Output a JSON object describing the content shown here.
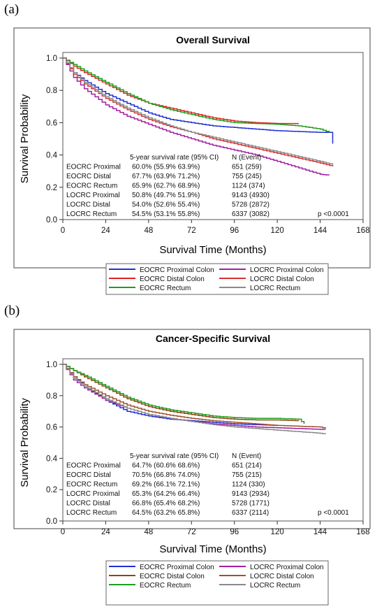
{
  "panels": [
    {
      "label": "(a)",
      "chart_data": {
        "type": "line",
        "title": "Overall Survival",
        "xlabel": "Survival Time (Months)",
        "ylabel": "Survival Probability",
        "xlim": [
          0,
          168
        ],
        "ylim": [
          0,
          1.0
        ],
        "xticks": [
          0,
          24,
          48,
          72,
          96,
          120,
          144,
          168
        ],
        "yticks": [
          0.0,
          0.2,
          0.4,
          0.6,
          0.8,
          1.0
        ],
        "ytick_labels": [
          "0.0",
          "0.2",
          "0.4",
          "0.6",
          "0.8",
          "1.0"
        ],
        "series": [
          {
            "name": "EOCRC Proximal Colon",
            "color": "#1f2fd6",
            "points": [
              [
                0,
                1.0
              ],
              [
                6,
                0.91
              ],
              [
                12,
                0.86
              ],
              [
                24,
                0.78
              ],
              [
                36,
                0.72
              ],
              [
                48,
                0.66
              ],
              [
                60,
                0.62
              ],
              [
                72,
                0.6
              ],
              [
                84,
                0.58
              ],
              [
                96,
                0.57
              ],
              [
                108,
                0.56
              ],
              [
                120,
                0.55
              ],
              [
                132,
                0.545
              ],
              [
                144,
                0.54
              ],
              [
                151,
                0.54
              ],
              [
                151,
                0.47
              ]
            ]
          },
          {
            "name": "EOCRC Distal Colon",
            "color": "#e02020",
            "points": [
              [
                0,
                1.0
              ],
              [
                6,
                0.95
              ],
              [
                12,
                0.91
              ],
              [
                24,
                0.84
              ],
              [
                36,
                0.77
              ],
              [
                48,
                0.72
              ],
              [
                60,
                0.69
              ],
              [
                72,
                0.66
              ],
              [
                84,
                0.63
              ],
              [
                96,
                0.61
              ],
              [
                108,
                0.6
              ],
              [
                120,
                0.595
              ],
              [
                132,
                0.595
              ]
            ]
          },
          {
            "name": "EOCRC Rectum",
            "color": "#1e9e1e",
            "points": [
              [
                0,
                1.0
              ],
              [
                6,
                0.96
              ],
              [
                12,
                0.92
              ],
              [
                24,
                0.85
              ],
              [
                36,
                0.78
              ],
              [
                48,
                0.72
              ],
              [
                60,
                0.68
              ],
              [
                72,
                0.65
              ],
              [
                84,
                0.62
              ],
              [
                96,
                0.6
              ],
              [
                108,
                0.595
              ],
              [
                120,
                0.59
              ],
              [
                132,
                0.58
              ],
              [
                144,
                0.56
              ],
              [
                149,
                0.54
              ]
            ]
          },
          {
            "name": "LOCRC Proximal Colon",
            "color": "#a020a0",
            "points": [
              [
                0,
                1.0
              ],
              [
                6,
                0.88
              ],
              [
                12,
                0.81
              ],
              [
                24,
                0.71
              ],
              [
                36,
                0.64
              ],
              [
                48,
                0.59
              ],
              [
                60,
                0.54
              ],
              [
                72,
                0.5
              ],
              [
                84,
                0.46
              ],
              [
                96,
                0.43
              ],
              [
                108,
                0.4
              ],
              [
                120,
                0.36
              ],
              [
                132,
                0.32
              ],
              [
                144,
                0.28
              ],
              [
                149,
                0.275
              ]
            ]
          },
          {
            "name": "LOCRC Distal Colon",
            "color": "#d83030",
            "points": [
              [
                0,
                1.0
              ],
              [
                6,
                0.9
              ],
              [
                12,
                0.84
              ],
              [
                24,
                0.75
              ],
              [
                36,
                0.68
              ],
              [
                48,
                0.62
              ],
              [
                60,
                0.575
              ],
              [
                72,
                0.54
              ],
              [
                84,
                0.5
              ],
              [
                96,
                0.47
              ],
              [
                108,
                0.44
              ],
              [
                120,
                0.41
              ],
              [
                132,
                0.38
              ],
              [
                144,
                0.35
              ],
              [
                151,
                0.33
              ]
            ]
          },
          {
            "name": "LOCRC Rectum",
            "color": "#8a8a8a",
            "points": [
              [
                0,
                1.0
              ],
              [
                6,
                0.91
              ],
              [
                12,
                0.85
              ],
              [
                24,
                0.76
              ],
              [
                36,
                0.69
              ],
              [
                48,
                0.63
              ],
              [
                60,
                0.58
              ],
              [
                72,
                0.54
              ],
              [
                84,
                0.51
              ],
              [
                96,
                0.48
              ],
              [
                108,
                0.45
              ],
              [
                120,
                0.42
              ],
              [
                132,
                0.39
              ],
              [
                144,
                0.36
              ],
              [
                151,
                0.34
              ]
            ]
          }
        ],
        "table": {
          "header_rate": "5-year survival rate (95% CI)",
          "header_n": "N (Event)",
          "rows": [
            {
              "group": "EOCRC Proximal",
              "rate": "60.0% (55.9% 63.9%)",
              "n": "651 (259)"
            },
            {
              "group": "EOCRC Distal",
              "rate": "67.7% (63.9% 71.2%)",
              "n": "755 (245)"
            },
            {
              "group": "EOCRC Rectum",
              "rate": "65.9% (62.7% 68.9%)",
              "n": "1124 (374)"
            },
            {
              "group": "LOCRC Proximal",
              "rate": "50.8% (49.7% 51.9%)",
              "n": "9143 (4930)"
            },
            {
              "group": "LOCRC Distal",
              "rate": "54.0% (52.6% 55.4%)",
              "n": "5728 (2872)"
            },
            {
              "group": "LOCRC Rectum",
              "rate": "54.5% (53.1% 55.8%)",
              "n": "6337 (3082)"
            }
          ],
          "p_value": "p <0.0001"
        }
      }
    },
    {
      "label": "(b)",
      "chart_data": {
        "type": "line",
        "title": "Cancer-Specific Survival",
        "xlabel": "Survival Time (Months)",
        "ylabel": "Survival Probability",
        "xlim": [
          0,
          168
        ],
        "ylim": [
          0,
          1.0
        ],
        "xticks": [
          0,
          24,
          48,
          72,
          96,
          120,
          144,
          168
        ],
        "yticks": [
          0.0,
          0.2,
          0.4,
          0.6,
          0.8,
          1.0
        ],
        "ytick_labels": [
          "0.0",
          "0.2",
          "0.4",
          "0.6",
          "0.8",
          "1.0"
        ],
        "series": [
          {
            "name": "EOCRC Proximal Colon",
            "color": "#1f2fd6",
            "points": [
              [
                0,
                1.0
              ],
              [
                6,
                0.92
              ],
              [
                12,
                0.86
              ],
              [
                24,
                0.77
              ],
              [
                36,
                0.7
              ],
              [
                48,
                0.67
              ],
              [
                60,
                0.65
              ],
              [
                72,
                0.64
              ],
              [
                84,
                0.63
              ],
              [
                96,
                0.62
              ],
              [
                108,
                0.615
              ],
              [
                120,
                0.61
              ]
            ]
          },
          {
            "name": "EOCRC Distal Colon",
            "color": "#8b4513",
            "points": [
              [
                0,
                1.0
              ],
              [
                6,
                0.96
              ],
              [
                12,
                0.92
              ],
              [
                24,
                0.85
              ],
              [
                36,
                0.78
              ],
              [
                48,
                0.73
              ],
              [
                60,
                0.7
              ],
              [
                72,
                0.68
              ],
              [
                84,
                0.66
              ],
              [
                96,
                0.65
              ],
              [
                108,
                0.645
              ],
              [
                120,
                0.645
              ],
              [
                132,
                0.64
              ]
            ]
          },
          {
            "name": "EOCRC Rectum",
            "color": "#1e9e1e",
            "points": [
              [
                0,
                1.0
              ],
              [
                6,
                0.96
              ],
              [
                12,
                0.93
              ],
              [
                24,
                0.86
              ],
              [
                36,
                0.79
              ],
              [
                48,
                0.74
              ],
              [
                60,
                0.71
              ],
              [
                72,
                0.69
              ],
              [
                84,
                0.67
              ],
              [
                96,
                0.66
              ],
              [
                108,
                0.655
              ],
              [
                120,
                0.655
              ],
              [
                132,
                0.65
              ],
              [
                135,
                0.62
              ]
            ]
          },
          {
            "name": "LOCRC Proximal Colon",
            "color": "#a020a0",
            "points": [
              [
                0,
                1.0
              ],
              [
                6,
                0.9
              ],
              [
                12,
                0.85
              ],
              [
                24,
                0.77
              ],
              [
                36,
                0.72
              ],
              [
                48,
                0.68
              ],
              [
                60,
                0.655
              ],
              [
                72,
                0.635
              ],
              [
                84,
                0.62
              ],
              [
                96,
                0.61
              ],
              [
                108,
                0.6
              ],
              [
                120,
                0.595
              ],
              [
                132,
                0.59
              ],
              [
                144,
                0.585
              ],
              [
                147,
                0.585
              ]
            ]
          },
          {
            "name": "LOCRC Distal Colon",
            "color": "#a0522d",
            "points": [
              [
                0,
                1.0
              ],
              [
                6,
                0.92
              ],
              [
                12,
                0.87
              ],
              [
                24,
                0.8
              ],
              [
                36,
                0.74
              ],
              [
                48,
                0.7
              ],
              [
                60,
                0.675
              ],
              [
                72,
                0.655
              ],
              [
                84,
                0.64
              ],
              [
                96,
                0.63
              ],
              [
                108,
                0.62
              ],
              [
                120,
                0.61
              ],
              [
                132,
                0.605
              ],
              [
                144,
                0.6
              ],
              [
                147,
                0.59
              ]
            ]
          },
          {
            "name": "LOCRC Rectum",
            "color": "#8a8a8a",
            "points": [
              [
                0,
                1.0
              ],
              [
                6,
                0.91
              ],
              [
                12,
                0.86
              ],
              [
                24,
                0.78
              ],
              [
                36,
                0.72
              ],
              [
                48,
                0.68
              ],
              [
                60,
                0.655
              ],
              [
                72,
                0.635
              ],
              [
                84,
                0.615
              ],
              [
                96,
                0.6
              ],
              [
                108,
                0.59
              ],
              [
                120,
                0.58
              ],
              [
                132,
                0.57
              ],
              [
                144,
                0.56
              ],
              [
                147,
                0.555
              ]
            ]
          }
        ],
        "table": {
          "header_rate": "5-year survival rate (95% CI)",
          "header_n": "N (Event)",
          "rows": [
            {
              "group": "EOCRC Proximal",
              "rate": "64.7% (60.6% 68.6%)",
              "n": "651 (214)"
            },
            {
              "group": "EOCRC Distal",
              "rate": "70.5% (66.8% 74.0%)",
              "n": "755 (215)"
            },
            {
              "group": "EOCRC Rectum",
              "rate": "69.2% (66.1% 72.1%)",
              "n": "1124 (330)"
            },
            {
              "group": "LOCRC Proximal",
              "rate": "65.3% (64.2% 66.4%)",
              "n": "9143 (2934)"
            },
            {
              "group": "LOCRC Distal",
              "rate": "66.8% (65.4% 68.2%)",
              "n": "5728 (1771)"
            },
            {
              "group": "LOCRC Rectum",
              "rate": "64.5% (63.2% 65.8%)",
              "n": "6337 (2114)"
            }
          ],
          "p_value": "p <0.0001"
        }
      }
    }
  ]
}
